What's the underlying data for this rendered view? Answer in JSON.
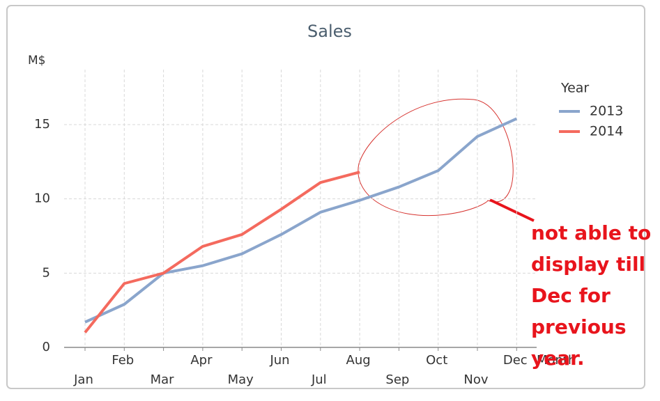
{
  "chart_data": {
    "type": "line",
    "title": "Sales",
    "y_label": "M$",
    "x_label": "Month",
    "categories": [
      "Jan",
      "Feb",
      "Mar",
      "Apr",
      "May",
      "Jun",
      "Jul",
      "Aug",
      "Sep",
      "Oct",
      "Nov",
      "Dec"
    ],
    "legend_title": "Year",
    "legend": "right",
    "series": [
      {
        "name": "2013",
        "color": "#8aa5cc",
        "values": [
          1.7,
          2.9,
          5.0,
          5.5,
          6.3,
          7.6,
          9.1,
          9.9,
          10.8,
          11.9,
          14.2,
          15.4
        ]
      },
      {
        "name": "2014",
        "color": "#f46a5e",
        "values": [
          1.0,
          4.3,
          5.0,
          6.8,
          7.6,
          9.3,
          11.1,
          11.8,
          null,
          null,
          null,
          null
        ]
      }
    ],
    "ylim": [
      0,
      18.7
    ],
    "yticks": [
      0,
      5,
      10,
      15
    ],
    "grid": true,
    "annotation": [
      "not able to",
      "display till",
      "Dec for",
      "previous",
      "year."
    ]
  }
}
